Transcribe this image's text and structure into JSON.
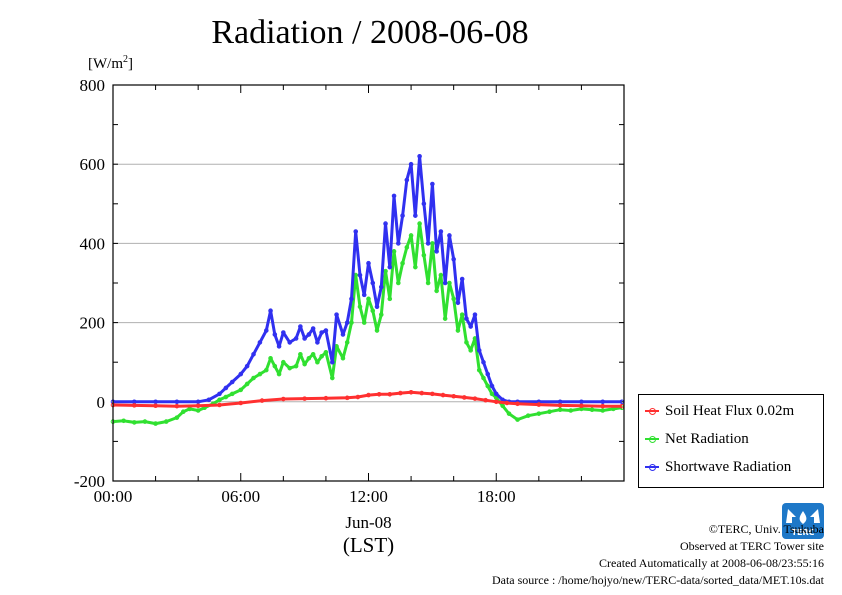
{
  "chart_data": {
    "type": "line",
    "title": "Radiation / 2008-06-08",
    "ylabel": "[W/m²]",
    "xlabel": "(LST)",
    "x_date_label": "Jun-08",
    "ylim": [
      -200,
      800
    ],
    "xlim_hours": [
      0,
      24
    ],
    "x_ticks": [
      {
        "hour": 0,
        "label": "00:00"
      },
      {
        "hour": 6,
        "label": "06:00"
      },
      {
        "hour": 12,
        "label": "12:00"
      },
      {
        "hour": 18,
        "label": "18:00"
      }
    ],
    "y_ticks": [
      -200,
      0,
      200,
      400,
      600,
      800
    ],
    "grid": true,
    "legend_position": "lower-right outside",
    "series": [
      {
        "name": "Soil Heat Flux 0.02m",
        "color": "#ff3030",
        "x": [
          0,
          1,
          2,
          3,
          4,
          5,
          6,
          7,
          8,
          9,
          10,
          11,
          11.5,
          12,
          12.5,
          13,
          13.5,
          14,
          14.5,
          15,
          15.5,
          16,
          16.5,
          17,
          17.5,
          18,
          18.5,
          19,
          20,
          21,
          22,
          23,
          23.9
        ],
        "y": [
          -8,
          -9,
          -10,
          -11,
          -10,
          -8,
          -3,
          3,
          7,
          8,
          9,
          10,
          12,
          17,
          19,
          19,
          22,
          24,
          22,
          20,
          17,
          14,
          11,
          8,
          4,
          0,
          -3,
          -5,
          -7,
          -9,
          -10,
          -11,
          -11
        ]
      },
      {
        "name": "Net Radiation",
        "color": "#30e030",
        "x": [
          0,
          0.5,
          1,
          1.5,
          2,
          2.5,
          3,
          3.3,
          3.6,
          4,
          4.3,
          4.7,
          5,
          5.3,
          5.6,
          6,
          6.3,
          6.6,
          6.9,
          7.2,
          7.4,
          7.6,
          7.8,
          8.0,
          8.3,
          8.6,
          8.8,
          9.0,
          9.2,
          9.4,
          9.6,
          9.8,
          10.0,
          10.3,
          10.5,
          10.8,
          11.0,
          11.2,
          11.4,
          11.6,
          11.8,
          12.0,
          12.2,
          12.4,
          12.6,
          12.8,
          13.0,
          13.2,
          13.4,
          13.6,
          13.8,
          14.0,
          14.2,
          14.4,
          14.6,
          14.8,
          15.0,
          15.2,
          15.4,
          15.6,
          15.8,
          16.0,
          16.2,
          16.4,
          16.6,
          16.8,
          17.0,
          17.2,
          17.4,
          17.6,
          17.8,
          18.0,
          18.3,
          18.6,
          19.0,
          19.5,
          20,
          20.5,
          21,
          21.5,
          22,
          22.5,
          23,
          23.5,
          23.9
        ],
        "y": [
          -50,
          -48,
          -52,
          -50,
          -55,
          -50,
          -40,
          -25,
          -18,
          -22,
          -15,
          -5,
          5,
          12,
          20,
          30,
          45,
          60,
          70,
          80,
          110,
          90,
          70,
          100,
          85,
          90,
          120,
          95,
          110,
          120,
          100,
          115,
          125,
          60,
          140,
          110,
          150,
          200,
          320,
          240,
          200,
          260,
          230,
          180,
          220,
          330,
          260,
          380,
          300,
          350,
          390,
          420,
          340,
          450,
          370,
          300,
          400,
          280,
          320,
          210,
          300,
          260,
          180,
          220,
          150,
          130,
          160,
          80,
          60,
          40,
          20,
          10,
          -10,
          -30,
          -45,
          -35,
          -30,
          -25,
          -20,
          -22,
          -18,
          -20,
          -22,
          -18,
          -15
        ]
      },
      {
        "name": "Shortwave Radiation",
        "color": "#3030f0",
        "x": [
          0,
          1,
          2,
          3,
          4,
          4.5,
          5,
          5.3,
          5.6,
          6,
          6.3,
          6.6,
          6.9,
          7.2,
          7.4,
          7.6,
          7.8,
          8.0,
          8.3,
          8.6,
          8.8,
          9.0,
          9.2,
          9.4,
          9.6,
          9.8,
          10.0,
          10.3,
          10.5,
          10.8,
          11.0,
          11.2,
          11.4,
          11.6,
          11.8,
          12.0,
          12.2,
          12.4,
          12.6,
          12.8,
          13.0,
          13.2,
          13.4,
          13.6,
          13.8,
          14.0,
          14.2,
          14.4,
          14.6,
          14.8,
          15.0,
          15.2,
          15.4,
          15.6,
          15.8,
          16.0,
          16.2,
          16.4,
          16.6,
          16.8,
          17.0,
          17.2,
          17.4,
          17.6,
          17.8,
          18.0,
          18.3,
          18.6,
          19.0,
          20,
          21,
          22,
          23,
          23.9
        ],
        "y": [
          0,
          0,
          0,
          0,
          0,
          5,
          20,
          35,
          50,
          70,
          90,
          120,
          150,
          180,
          230,
          170,
          140,
          175,
          150,
          160,
          190,
          160,
          170,
          185,
          150,
          175,
          180,
          100,
          220,
          170,
          200,
          260,
          430,
          320,
          270,
          350,
          300,
          240,
          290,
          450,
          340,
          520,
          400,
          470,
          560,
          600,
          470,
          620,
          500,
          400,
          550,
          380,
          430,
          300,
          420,
          360,
          250,
          310,
          210,
          190,
          220,
          130,
          100,
          70,
          40,
          20,
          5,
          0,
          0,
          0,
          0,
          0,
          0,
          0
        ]
      }
    ]
  },
  "footer": {
    "copyright": "©TERC, Univ. Tsukuba",
    "site": "Observed at TERC Tower site",
    "created": "Created Automatically at 2008-06-08/23:55:16",
    "source": "Data source : /home/hojyo/new/TERC-data/sorted_data/MET.10s.dat"
  },
  "logo_text": "TERC",
  "colors": {
    "grid": "#b0b0b0",
    "axis": "#000000",
    "logo": "#1e78c8"
  }
}
